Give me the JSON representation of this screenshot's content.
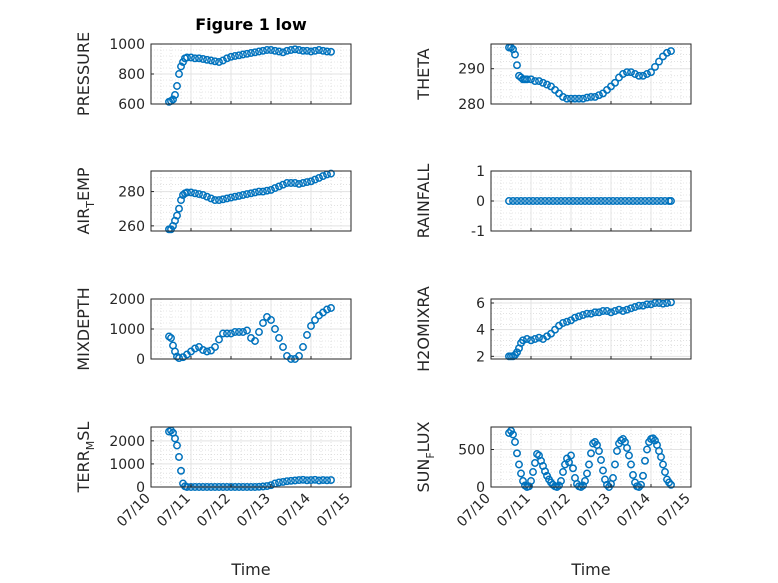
{
  "figure": {
    "title": "Figure 1 low"
  },
  "chart_data": [
    {
      "type": "scatter",
      "panel": "top-left",
      "title": "Figure 1 low",
      "ylabel": "PRESSURE",
      "xlabel": "",
      "xlim": [
        0,
        5
      ],
      "ylim": [
        600,
        1000
      ],
      "yticks": [
        600,
        800,
        1000
      ],
      "ytick_labels": [
        "600",
        "800",
        "1000"
      ],
      "grid": true,
      "minor_grid": true,
      "marker": "open-circle",
      "color": "#0072BD",
      "series": [
        {
          "x": [
            0.45,
            0.5,
            0.55,
            0.6,
            0.65,
            0.7,
            0.75,
            0.8,
            0.85,
            0.9,
            1.0,
            1.1,
            1.2,
            1.3,
            1.4,
            1.5,
            1.6,
            1.7,
            1.8,
            1.9,
            2.0,
            2.1,
            2.2,
            2.3,
            2.4,
            2.5,
            2.6,
            2.7,
            2.8,
            2.9,
            3.0,
            3.1,
            3.2,
            3.3,
            3.4,
            3.5,
            3.6,
            3.7,
            3.8,
            3.9,
            4.0,
            4.1,
            4.2,
            4.3,
            4.4,
            4.5
          ],
          "y": [
            615,
            620,
            630,
            660,
            720,
            800,
            850,
            880,
            905,
            910,
            910,
            905,
            905,
            900,
            895,
            890,
            885,
            880,
            890,
            905,
            915,
            920,
            925,
            930,
            935,
            940,
            945,
            950,
            955,
            960,
            960,
            955,
            950,
            945,
            955,
            960,
            965,
            960,
            955,
            955,
            950,
            955,
            960,
            955,
            950,
            948
          ]
        }
      ]
    },
    {
      "type": "scatter",
      "panel": "top-right",
      "ylabel": "THETA",
      "xlabel": "",
      "xlim": [
        0,
        5
      ],
      "ylim": [
        280,
        297
      ],
      "yticks": [
        280,
        290
      ],
      "ytick_labels": [
        "280",
        "290"
      ],
      "grid": true,
      "minor_grid": true,
      "marker": "open-circle",
      "color": "#0072BD",
      "series": [
        {
          "x": [
            0.45,
            0.5,
            0.55,
            0.6,
            0.65,
            0.7,
            0.75,
            0.8,
            0.85,
            0.9,
            1.0,
            1.1,
            1.2,
            1.3,
            1.4,
            1.5,
            1.6,
            1.7,
            1.8,
            1.9,
            2.0,
            2.1,
            2.2,
            2.3,
            2.4,
            2.5,
            2.6,
            2.7,
            2.8,
            2.9,
            3.0,
            3.1,
            3.2,
            3.3,
            3.4,
            3.5,
            3.6,
            3.7,
            3.8,
            3.9,
            4.0,
            4.1,
            4.2,
            4.3,
            4.4,
            4.5
          ],
          "y": [
            296,
            296,
            295.5,
            294,
            291,
            288,
            287.5,
            287,
            287,
            287,
            287,
            286.5,
            286.5,
            286,
            285.5,
            285,
            284,
            283,
            282,
            281.5,
            281.5,
            281.5,
            281.5,
            281.5,
            281.8,
            282,
            282,
            282.5,
            283,
            284,
            285,
            286,
            287.5,
            288.5,
            289,
            289,
            288.5,
            288,
            288,
            288.5,
            289,
            290.5,
            292,
            293.5,
            294.5,
            295
          ]
        }
      ]
    },
    {
      "type": "scatter",
      "panel": "row2-left",
      "ylabel": "AIR_TEMP",
      "xlabel": "",
      "xlim": [
        0,
        5
      ],
      "ylim": [
        257,
        292
      ],
      "yticks": [
        260,
        280
      ],
      "ytick_labels": [
        "260",
        "280"
      ],
      "grid": true,
      "minor_grid": true,
      "marker": "open-circle",
      "color": "#0072BD",
      "series": [
        {
          "x": [
            0.45,
            0.5,
            0.55,
            0.6,
            0.65,
            0.7,
            0.75,
            0.8,
            0.85,
            0.9,
            1.0,
            1.1,
            1.2,
            1.3,
            1.4,
            1.5,
            1.6,
            1.7,
            1.8,
            1.9,
            2.0,
            2.1,
            2.2,
            2.3,
            2.4,
            2.5,
            2.6,
            2.7,
            2.8,
            2.9,
            3.0,
            3.1,
            3.2,
            3.3,
            3.4,
            3.5,
            3.6,
            3.7,
            3.8,
            3.9,
            4.0,
            4.1,
            4.2,
            4.3,
            4.4,
            4.5
          ],
          "y": [
            258,
            258,
            260,
            263,
            266,
            270,
            275,
            278,
            279,
            279.5,
            279.5,
            279,
            278.5,
            278,
            277,
            276,
            275,
            275,
            275.5,
            276,
            276.5,
            277,
            277.5,
            278,
            278.5,
            279,
            279.5,
            280,
            280,
            280.5,
            281,
            282,
            283,
            284,
            285,
            285,
            285,
            284.5,
            285,
            285.5,
            286,
            287,
            288,
            289,
            290,
            290.5
          ]
        }
      ]
    },
    {
      "type": "scatter",
      "panel": "row2-right",
      "ylabel": "RAINFALL",
      "xlabel": "",
      "xlim": [
        0,
        5
      ],
      "ylim": [
        -1,
        1
      ],
      "yticks": [
        -1,
        0,
        1
      ],
      "ytick_labels": [
        "-1",
        "0",
        "1"
      ],
      "grid": true,
      "minor_grid": true,
      "marker": "open-circle",
      "color": "#0072BD",
      "series": [
        {
          "x": [
            0.45,
            0.55,
            0.65,
            0.75,
            0.85,
            0.95,
            1.05,
            1.15,
            1.25,
            1.35,
            1.45,
            1.55,
            1.65,
            1.75,
            1.85,
            1.95,
            2.05,
            2.15,
            2.25,
            2.35,
            2.45,
            2.55,
            2.65,
            2.75,
            2.85,
            2.95,
            3.05,
            3.15,
            3.25,
            3.35,
            3.45,
            3.55,
            3.65,
            3.75,
            3.85,
            3.95,
            4.05,
            4.15,
            4.25,
            4.35,
            4.45,
            4.5
          ],
          "y": [
            0,
            0,
            0,
            0,
            0,
            0,
            0,
            0,
            0,
            0,
            0,
            0,
            0,
            0,
            0,
            0,
            0,
            0,
            0,
            0,
            0,
            0,
            0,
            0,
            0,
            0,
            0,
            0,
            0,
            0,
            0,
            0,
            0,
            0,
            0,
            0,
            0,
            0,
            0,
            0,
            0,
            0
          ]
        }
      ]
    },
    {
      "type": "scatter",
      "panel": "row3-left",
      "ylabel": "MIXDEPTH",
      "xlabel": "",
      "xlim": [
        0,
        5
      ],
      "ylim": [
        0,
        2000
      ],
      "yticks": [
        0,
        1000,
        2000
      ],
      "ytick_labels": [
        "0",
        "1000",
        "2000"
      ],
      "grid": true,
      "minor_grid": true,
      "marker": "open-circle",
      "color": "#0072BD",
      "series": [
        {
          "x": [
            0.45,
            0.5,
            0.55,
            0.6,
            0.65,
            0.7,
            0.8,
            0.9,
            1.0,
            1.1,
            1.2,
            1.3,
            1.4,
            1.5,
            1.6,
            1.7,
            1.8,
            1.9,
            2.0,
            2.1,
            2.2,
            2.3,
            2.4,
            2.5,
            2.6,
            2.7,
            2.8,
            2.9,
            3.0,
            3.1,
            3.2,
            3.3,
            3.4,
            3.5,
            3.6,
            3.7,
            3.8,
            3.9,
            4.0,
            4.1,
            4.2,
            4.3,
            4.4,
            4.5
          ],
          "y": [
            750,
            700,
            450,
            250,
            80,
            30,
            60,
            150,
            250,
            350,
            400,
            300,
            250,
            280,
            400,
            650,
            850,
            850,
            850,
            900,
            900,
            900,
            950,
            700,
            600,
            900,
            1200,
            1400,
            1300,
            1000,
            700,
            400,
            100,
            0,
            0,
            100,
            400,
            800,
            1100,
            1300,
            1450,
            1550,
            1650,
            1700
          ]
        }
      ]
    },
    {
      "type": "scatter",
      "panel": "row3-right",
      "ylabel": "H2OMIXRA",
      "xlabel": "",
      "xlim": [
        0,
        5
      ],
      "ylim": [
        1.8,
        6.3
      ],
      "yticks": [
        2,
        4,
        6
      ],
      "ytick_labels": [
        "2",
        "4",
        "6"
      ],
      "grid": true,
      "minor_grid": true,
      "marker": "open-circle",
      "color": "#0072BD",
      "series": [
        {
          "x": [
            0.45,
            0.5,
            0.55,
            0.6,
            0.65,
            0.7,
            0.75,
            0.8,
            0.9,
            1.0,
            1.1,
            1.2,
            1.3,
            1.4,
            1.5,
            1.6,
            1.7,
            1.8,
            1.9,
            2.0,
            2.1,
            2.2,
            2.3,
            2.4,
            2.5,
            2.6,
            2.7,
            2.8,
            2.9,
            3.0,
            3.1,
            3.2,
            3.3,
            3.4,
            3.5,
            3.6,
            3.7,
            3.8,
            3.9,
            4.0,
            4.1,
            4.2,
            4.3,
            4.4,
            4.5
          ],
          "y": [
            2,
            2,
            2,
            2.1,
            2.3,
            2.6,
            3,
            3.2,
            3.3,
            3.2,
            3.3,
            3.4,
            3.3,
            3.5,
            3.7,
            4,
            4.3,
            4.5,
            4.6,
            4.7,
            4.9,
            5,
            5.1,
            5.2,
            5.2,
            5.3,
            5.3,
            5.4,
            5.4,
            5.3,
            5.4,
            5.5,
            5.4,
            5.5,
            5.6,
            5.7,
            5.8,
            5.8,
            5.9,
            5.9,
            6,
            6,
            5.95,
            6,
            6.05
          ]
        }
      ]
    },
    {
      "type": "scatter",
      "panel": "bottom-left",
      "ylabel": "TERR_MSL",
      "xlabel": "Time",
      "xlim": [
        0,
        5
      ],
      "ylim": [
        0,
        2600
      ],
      "yticks": [
        0,
        1000,
        2000
      ],
      "ytick_labels": [
        "0",
        "1000",
        "2000"
      ],
      "xticks": [
        0,
        1,
        2,
        3,
        4,
        5
      ],
      "xtick_labels": [
        "07/10",
        "07/11",
        "07/12",
        "07/13",
        "07/14",
        "07/15"
      ],
      "grid": true,
      "minor_grid": true,
      "marker": "open-circle",
      "color": "#0072BD",
      "series": [
        {
          "x": [
            0.45,
            0.5,
            0.55,
            0.6,
            0.65,
            0.7,
            0.75,
            0.8,
            0.85,
            0.9,
            1.0,
            1.1,
            1.2,
            1.3,
            1.4,
            1.5,
            1.6,
            1.7,
            1.8,
            1.9,
            2.0,
            2.1,
            2.2,
            2.3,
            2.4,
            2.5,
            2.6,
            2.7,
            2.8,
            2.9,
            3.0,
            3.1,
            3.2,
            3.3,
            3.4,
            3.5,
            3.6,
            3.7,
            3.8,
            3.9,
            4.0,
            4.1,
            4.2,
            4.3,
            4.4,
            4.5
          ],
          "y": [
            2400,
            2450,
            2350,
            2100,
            1800,
            1300,
            700,
            150,
            30,
            0,
            0,
            0,
            0,
            0,
            0,
            0,
            0,
            0,
            0,
            0,
            0,
            0,
            0,
            0,
            0,
            0,
            0,
            10,
            20,
            40,
            80,
            150,
            200,
            220,
            250,
            270,
            280,
            300,
            310,
            290,
            300,
            310,
            280,
            300,
            290,
            300
          ]
        }
      ]
    },
    {
      "type": "scatter",
      "panel": "bottom-right",
      "ylabel": "SUN_FLUX",
      "xlabel": "Time",
      "xlim": [
        0,
        5
      ],
      "ylim": [
        0,
        800
      ],
      "yticks": [
        0,
        500
      ],
      "ytick_labels": [
        "0",
        "500"
      ],
      "xticks": [
        0,
        1,
        2,
        3,
        4,
        5
      ],
      "xtick_labels": [
        "07/10",
        "07/11",
        "07/12",
        "07/13",
        "07/14",
        "07/15"
      ],
      "grid": true,
      "minor_grid": true,
      "marker": "open-circle",
      "color": "#0072BD",
      "series": [
        {
          "x": [
            0.45,
            0.5,
            0.55,
            0.6,
            0.65,
            0.7,
            0.75,
            0.8,
            0.85,
            0.9,
            0.95,
            1.0,
            1.05,
            1.1,
            1.15,
            1.2,
            1.25,
            1.3,
            1.35,
            1.4,
            1.45,
            1.5,
            1.55,
            1.6,
            1.65,
            1.7,
            1.75,
            1.8,
            1.85,
            1.9,
            1.95,
            2.0,
            2.05,
            2.1,
            2.15,
            2.2,
            2.25,
            2.3,
            2.35,
            2.4,
            2.45,
            2.5,
            2.55,
            2.6,
            2.65,
            2.7,
            2.75,
            2.8,
            2.85,
            2.9,
            2.95,
            3.0,
            3.05,
            3.1,
            3.15,
            3.2,
            3.25,
            3.3,
            3.35,
            3.4,
            3.45,
            3.5,
            3.55,
            3.6,
            3.65,
            3.7,
            3.75,
            3.8,
            3.85,
            3.9,
            3.95,
            4.0,
            4.05,
            4.1,
            4.15,
            4.2,
            4.25,
            4.3,
            4.35,
            4.4,
            4.45,
            4.5
          ],
          "y": [
            720,
            750,
            700,
            600,
            450,
            300,
            180,
            80,
            20,
            0,
            10,
            80,
            200,
            320,
            440,
            420,
            350,
            280,
            210,
            150,
            100,
            60,
            30,
            10,
            0,
            20,
            80,
            200,
            300,
            380,
            330,
            420,
            250,
            120,
            40,
            10,
            0,
            20,
            80,
            180,
            300,
            450,
            580,
            600,
            560,
            480,
            360,
            220,
            100,
            30,
            0,
            40,
            120,
            300,
            480,
            580,
            620,
            640,
            600,
            520,
            420,
            300,
            160,
            60,
            10,
            0,
            30,
            150,
            350,
            500,
            600,
            640,
            650,
            620,
            560,
            480,
            400,
            300,
            200,
            100,
            60,
            30
          ]
        }
      ]
    }
  ]
}
